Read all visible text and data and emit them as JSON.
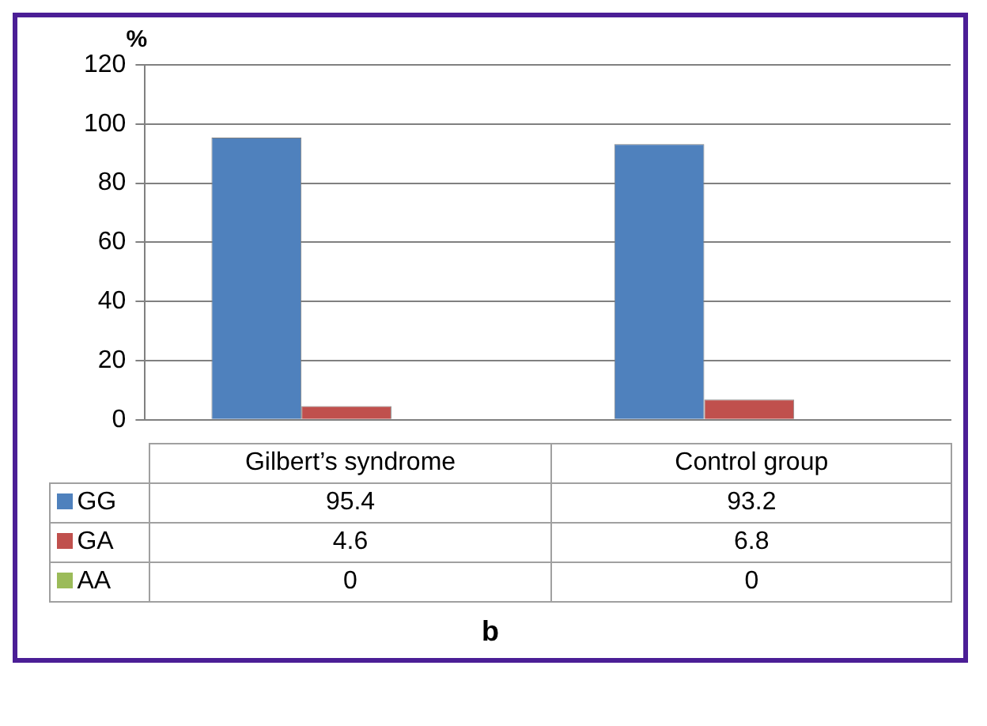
{
  "chart_data": {
    "type": "bar",
    "title": "b",
    "ylabel": "%",
    "categories": [
      "Gilbert’s syndrome",
      "Control group"
    ],
    "series": [
      {
        "name": "GG",
        "color": "#4f81bd",
        "values": [
          95.4,
          93.2
        ]
      },
      {
        "name": "GA",
        "color": "#c0504d",
        "values": [
          4.6,
          6.8
        ]
      },
      {
        "name": "AA",
        "color": "#9bbb59",
        "values": [
          0,
          0
        ]
      }
    ],
    "ylim": [
      0,
      120
    ],
    "yticks": [
      0,
      20,
      40,
      60,
      80,
      100,
      120
    ],
    "grid": "y",
    "legend": "bottom",
    "data_labels": true
  }
}
